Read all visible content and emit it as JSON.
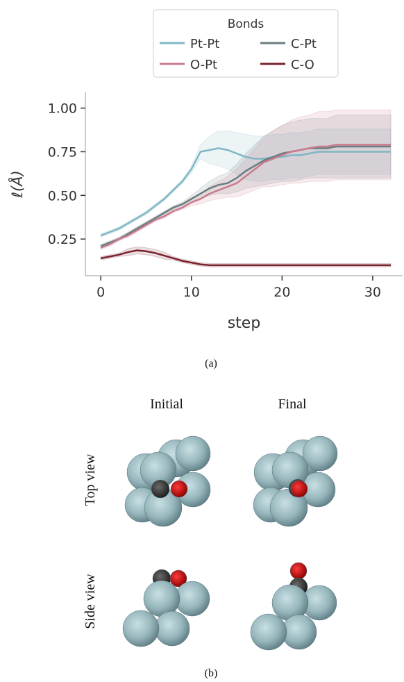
{
  "chart_data": {
    "type": "line",
    "xlabel": "step",
    "ylabel": "ℓ(Å)",
    "legend_title": "Bonds",
    "legend": "upper center",
    "x": [
      0,
      1,
      2,
      3,
      4,
      5,
      6,
      7,
      8,
      9,
      10,
      11,
      12,
      13,
      14,
      15,
      16,
      17,
      18,
      19,
      20,
      21,
      22,
      23,
      24,
      25,
      26,
      27,
      28,
      29,
      30,
      31,
      32
    ],
    "xlim": [
      -1.7,
      33.3
    ],
    "xticks": [
      0,
      10,
      20,
      30
    ],
    "ylim": [
      0.04,
      1.09
    ],
    "yticks": [
      0.25,
      {
        "value": 0.5,
        "label": "0.50"
      },
      0.75,
      {
        "value": 1.0,
        "label": "1.00"
      }
    ],
    "series": [
      {
        "name": "Pt-Pt",
        "color": "#7fb6c4",
        "values": [
          0.27,
          0.29,
          0.31,
          0.34,
          0.37,
          0.4,
          0.44,
          0.48,
          0.53,
          0.58,
          0.65,
          0.75,
          0.76,
          0.77,
          0.76,
          0.74,
          0.72,
          0.71,
          0.71,
          0.72,
          0.72,
          0.73,
          0.73,
          0.74,
          0.75,
          0.75,
          0.75,
          0.75,
          0.75,
          0.75,
          0.75,
          0.75,
          0.75
        ],
        "error": [
          0.01,
          0.01,
          0.01,
          0.01,
          0.01,
          0.01,
          0.01,
          0.01,
          0.01,
          0.01,
          0.02,
          0.04,
          0.08,
          0.1,
          0.11,
          0.12,
          0.13,
          0.13,
          0.13,
          0.13,
          0.13,
          0.13,
          0.13,
          0.13,
          0.13,
          0.13,
          0.13,
          0.13,
          0.13,
          0.13,
          0.13,
          0.13,
          0.13
        ]
      },
      {
        "name": "C-Pt",
        "color": "#6a7c80",
        "values": [
          0.21,
          0.23,
          0.25,
          0.28,
          0.31,
          0.34,
          0.37,
          0.4,
          0.43,
          0.45,
          0.48,
          0.51,
          0.54,
          0.56,
          0.57,
          0.6,
          0.64,
          0.67,
          0.7,
          0.72,
          0.74,
          0.75,
          0.76,
          0.77,
          0.77,
          0.77,
          0.78,
          0.78,
          0.78,
          0.78,
          0.78,
          0.78,
          0.78
        ],
        "error": [
          0.01,
          0.01,
          0.01,
          0.01,
          0.01,
          0.01,
          0.01,
          0.01,
          0.01,
          0.01,
          0.02,
          0.03,
          0.04,
          0.05,
          0.06,
          0.08,
          0.1,
          0.12,
          0.14,
          0.15,
          0.16,
          0.17,
          0.17,
          0.17,
          0.17,
          0.17,
          0.18,
          0.18,
          0.18,
          0.18,
          0.18,
          0.18,
          0.18
        ]
      },
      {
        "name": "O-Pt",
        "color": "#c87b8c",
        "values": [
          0.2,
          0.22,
          0.25,
          0.27,
          0.3,
          0.33,
          0.36,
          0.38,
          0.41,
          0.43,
          0.46,
          0.48,
          0.51,
          0.53,
          0.55,
          0.57,
          0.61,
          0.65,
          0.69,
          0.71,
          0.73,
          0.75,
          0.76,
          0.77,
          0.78,
          0.78,
          0.79,
          0.79,
          0.79,
          0.79,
          0.79,
          0.79,
          0.79
        ],
        "error": [
          0.01,
          0.01,
          0.01,
          0.01,
          0.01,
          0.01,
          0.01,
          0.01,
          0.01,
          0.01,
          0.02,
          0.03,
          0.04,
          0.05,
          0.06,
          0.08,
          0.1,
          0.12,
          0.14,
          0.16,
          0.17,
          0.18,
          0.19,
          0.19,
          0.2,
          0.2,
          0.2,
          0.2,
          0.2,
          0.2,
          0.2,
          0.2,
          0.2
        ]
      },
      {
        "name": "C-O",
        "color": "#7a2230",
        "values": [
          0.14,
          0.15,
          0.16,
          0.175,
          0.185,
          0.18,
          0.17,
          0.155,
          0.14,
          0.125,
          0.115,
          0.105,
          0.1,
          0.1,
          0.1,
          0.1,
          0.1,
          0.1,
          0.1,
          0.1,
          0.1,
          0.1,
          0.1,
          0.1,
          0.1,
          0.1,
          0.1,
          0.1,
          0.1,
          0.1,
          0.1,
          0.1,
          0.1
        ],
        "error": [
          0.01,
          0.01,
          0.01,
          0.02,
          0.02,
          0.02,
          0.02,
          0.02,
          0.01,
          0.01,
          0.01,
          0.01,
          0.01,
          0.01,
          0.01,
          0.01,
          0.01,
          0.01,
          0.01,
          0.01,
          0.01,
          0.01,
          0.01,
          0.01,
          0.01,
          0.01,
          0.01,
          0.01,
          0.01,
          0.01,
          0.01,
          0.01,
          0.01
        ]
      }
    ]
  },
  "figure": {
    "caption_a": "(a)",
    "columns": [
      "Initial",
      "Final"
    ],
    "rows": [
      "Top view",
      "Side view"
    ],
    "caption_b": "(b)"
  }
}
